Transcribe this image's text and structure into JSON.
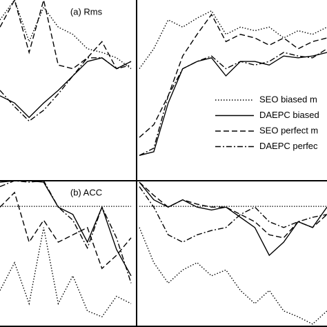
{
  "chart_data": [
    {
      "type": "line",
      "title": "(a) Rms",
      "x": [
        0,
        1,
        2,
        3,
        4,
        5,
        6,
        7,
        8,
        9
      ],
      "xlim": [
        0,
        9
      ],
      "ylim": [
        0,
        100
      ],
      "series": [
        {
          "dash": "dotted",
          "color": "#000",
          "values": [
            89,
            100,
            77,
            96,
            85,
            81,
            73,
            71,
            68,
            62
          ]
        },
        {
          "dash": "solid",
          "color": "#000",
          "values": [
            47,
            43,
            35,
            43,
            50,
            58,
            66,
            68,
            62,
            66
          ]
        },
        {
          "dash": "dashed",
          "color": "#000",
          "values": [
            85,
            100,
            71,
            100,
            64,
            62,
            68,
            77,
            62,
            66
          ]
        },
        {
          "dash": "dashdot",
          "color": "#000",
          "values": [
            50,
            41,
            33,
            39,
            48,
            58,
            68,
            68,
            62,
            64
          ]
        }
      ]
    },
    {
      "type": "line",
      "x": [
        0,
        1,
        2,
        3,
        4,
        5,
        6,
        7,
        8,
        9,
        10,
        11,
        12,
        13
      ],
      "xlim": [
        0,
        13
      ],
      "ylim": [
        0,
        100
      ],
      "series": [
        {
          "name": "SEO biased m",
          "dash": "dotted",
          "color": "#000",
          "values": [
            62,
            73,
            89,
            85,
            90,
            94,
            81,
            85,
            83,
            85,
            79,
            83,
            81,
            85
          ]
        },
        {
          "name": "DAEPC biased",
          "dash": "solid",
          "color": "#000",
          "values": [
            14,
            16,
            43,
            62,
            66,
            68,
            58,
            66,
            66,
            64,
            69,
            68,
            69,
            71
          ]
        },
        {
          "name": "SEO perfect m",
          "dash": "dashed",
          "color": "#000",
          "values": [
            24,
            31,
            47,
            69,
            81,
            92,
            77,
            81,
            79,
            75,
            79,
            73,
            77,
            79
          ]
        },
        {
          "name": "DAEPC perfec",
          "dash": "dashdot",
          "color": "#000",
          "values": [
            14,
            18,
            47,
            62,
            66,
            69,
            62,
            66,
            64,
            66,
            71,
            69,
            68,
            73
          ]
        }
      ]
    },
    {
      "type": "line",
      "title": "(b) ACC",
      "x": [
        0,
        1,
        2,
        3,
        4,
        5,
        6,
        7,
        8,
        9
      ],
      "xlim": [
        0,
        9
      ],
      "ylim": [
        0,
        100
      ],
      "hline": 82.5,
      "series": [
        {
          "dash": "dotted",
          "color": "#000",
          "values": [
            25,
            44,
            16,
            68,
            16,
            35,
            11,
            7,
            21,
            16
          ]
        },
        {
          "dash": "solid",
          "color": "#000",
          "values": [
            99,
            100,
            100,
            99,
            82,
            77,
            58,
            82,
            53,
            35
          ]
        },
        {
          "dash": "dashed",
          "color": "#000",
          "values": [
            82,
            92,
            58,
            73,
            58,
            63,
            68,
            40,
            49,
            61
          ]
        },
        {
          "dash": "dashdot",
          "color": "#000",
          "values": [
            96,
            100,
            99,
            100,
            82,
            73,
            54,
            82,
            61,
            30
          ]
        }
      ]
    },
    {
      "type": "line",
      "x": [
        0,
        1,
        2,
        3,
        4,
        5,
        6,
        7,
        8,
        9,
        10,
        11,
        12,
        13
      ],
      "xlim": [
        0,
        13
      ],
      "ylim": [
        0,
        100
      ],
      "hline": 82.5,
      "series": [
        {
          "dash": "dotted",
          "color": "#000",
          "values": [
            68,
            44,
            30,
            39,
            44,
            35,
            39,
            25,
            16,
            25,
            11,
            7,
            2,
            11
          ]
        },
        {
          "dash": "solid",
          "color": "#000",
          "values": [
            99,
            87,
            82,
            87,
            82,
            80,
            82,
            75,
            68,
            49,
            58,
            72,
            68,
            82
          ]
        },
        {
          "dash": "dashed",
          "color": "#000",
          "values": [
            99,
            90,
            82,
            87,
            84,
            82,
            82,
            77,
            72,
            63,
            61,
            72,
            68,
            77
          ]
        },
        {
          "dash": "dashdot",
          "color": "#000",
          "values": [
            96,
            82,
            63,
            58,
            63,
            66,
            68,
            77,
            82,
            72,
            68,
            72,
            75,
            77
          ]
        }
      ]
    }
  ]
}
